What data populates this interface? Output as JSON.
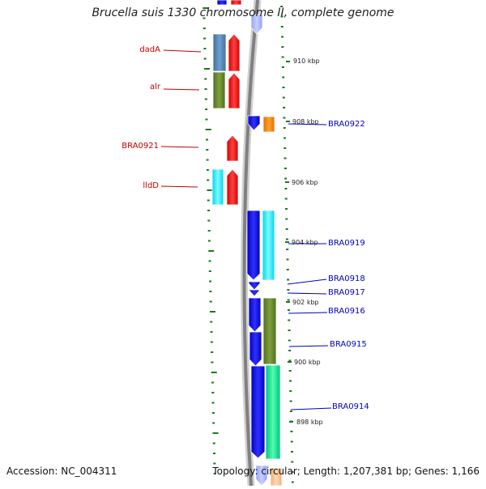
{
  "map": {
    "title": "Brucella suis 1330 chromosome II, complete genome",
    "accession_text": "Accession: NC_004311",
    "summary_text": "Topology: circular; Length: 1,207,381 bp; Genes: 1,166"
  },
  "colors": {
    "forward_gene": "#ff0000",
    "reverse_gene": "#0000e6",
    "tick": "#1a7a1a",
    "left_label": "#c00000",
    "right_label": "#0000c0",
    "backbone": "#808080"
  },
  "kbp_ticks": [
    {
      "label": "910 kbp",
      "kbp": 910
    },
    {
      "label": "908 kbp",
      "kbp": 908
    },
    {
      "label": "906 kbp",
      "kbp": 906
    },
    {
      "label": "904 kbp",
      "kbp": 904
    },
    {
      "label": "902 kbp",
      "kbp": 902
    },
    {
      "label": "900 kbp",
      "kbp": 900
    },
    {
      "label": "898 kbp",
      "kbp": 898
    }
  ],
  "left_genes": [
    {
      "label": "dadA"
    },
    {
      "label": "alr"
    },
    {
      "label": "BRA0921"
    },
    {
      "label": "lldD"
    }
  ],
  "right_genes": [
    {
      "label": "BRA0922"
    },
    {
      "label": "BRA0919"
    },
    {
      "label": "BRA0918"
    },
    {
      "label": "BRA0917"
    },
    {
      "label": "BRA0916"
    },
    {
      "label": "BRA0915"
    },
    {
      "label": "BRA0914"
    }
  ]
}
